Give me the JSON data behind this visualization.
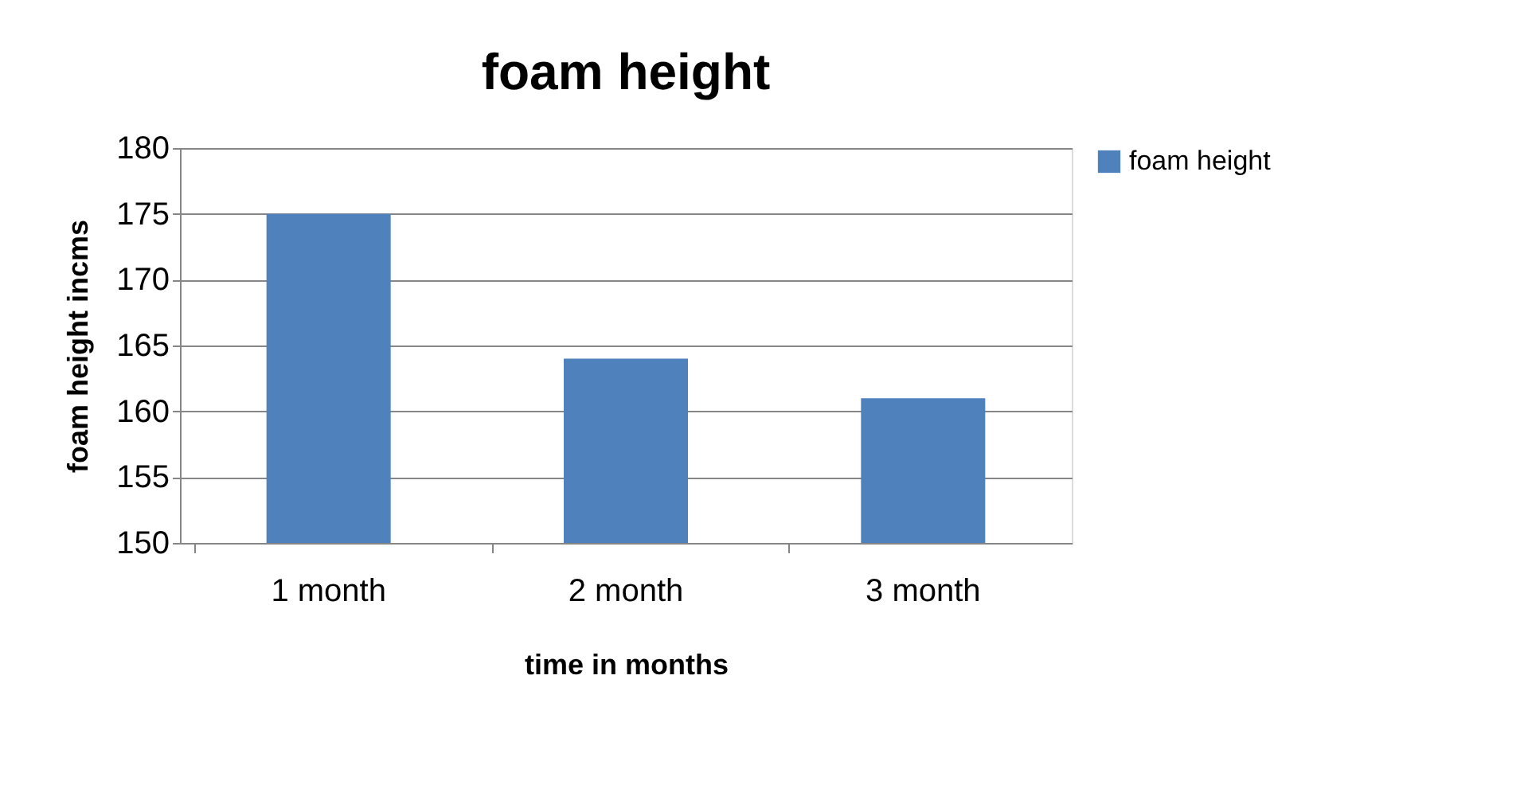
{
  "chart_data": {
    "type": "bar",
    "title": "foam height",
    "xlabel": "time in months",
    "ylabel": "foam height incms",
    "categories": [
      "1 month",
      "2 month",
      "3 month"
    ],
    "series": [
      {
        "name": "foam height",
        "color": "#4f81bd",
        "values": [
          175,
          164,
          161
        ]
      }
    ],
    "ylim": [
      150,
      180
    ],
    "yticks": [
      150,
      155,
      160,
      165,
      170,
      175,
      180
    ],
    "grid": "y",
    "legend": "right"
  }
}
